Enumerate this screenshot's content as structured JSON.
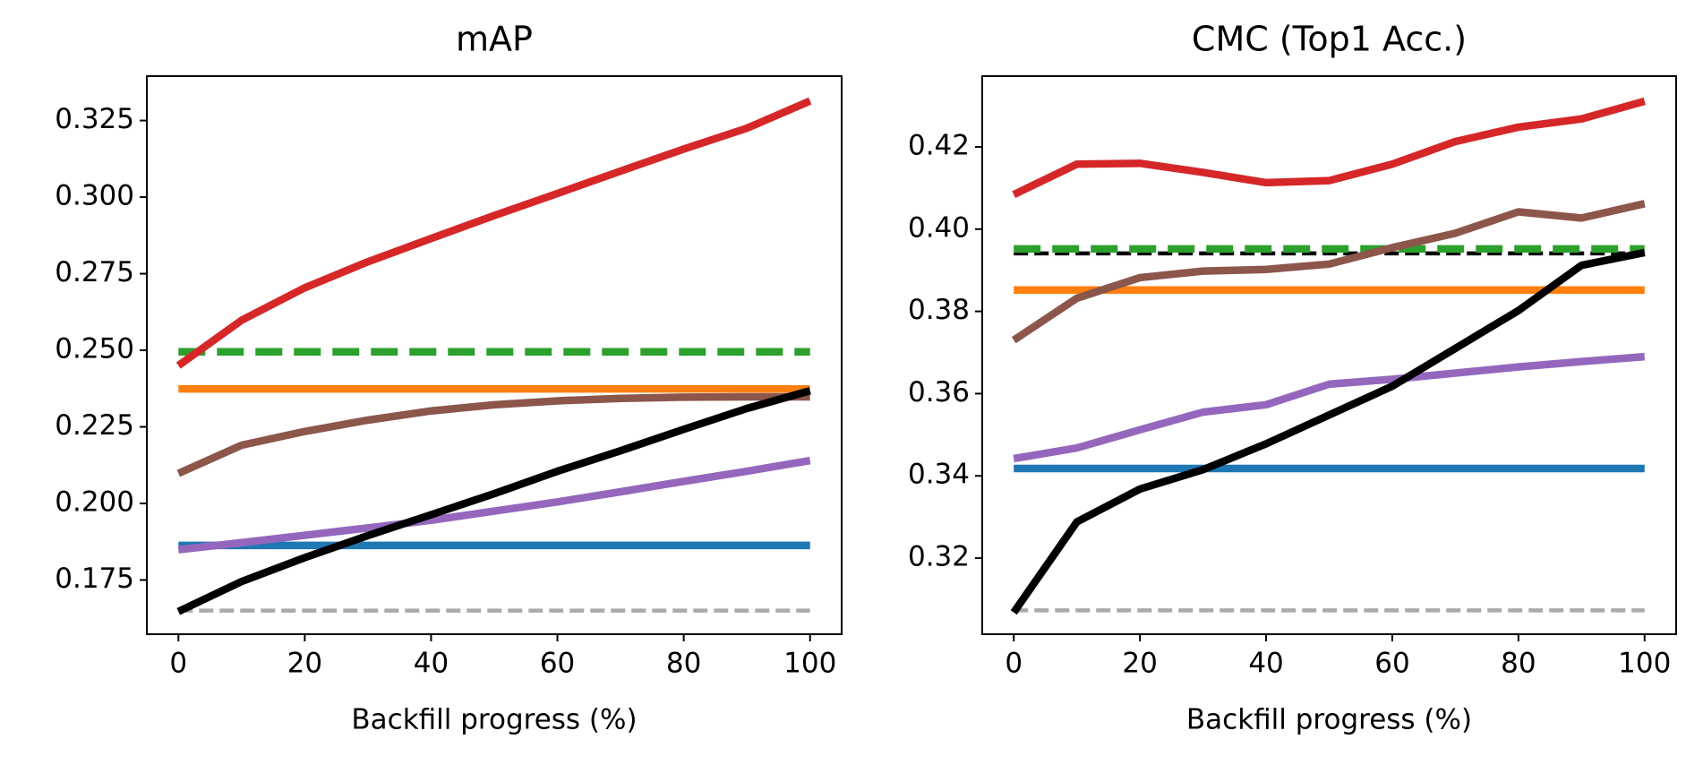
{
  "chart_data": [
    {
      "type": "line",
      "title": "mAP",
      "x_label": "Backfill progress (%)",
      "x": [
        0,
        10,
        20,
        30,
        40,
        50,
        60,
        70,
        80,
        90,
        100
      ],
      "xlim": [
        -5,
        105
      ],
      "xticks": [
        0,
        20,
        40,
        60,
        80,
        100
      ],
      "ylim": [
        0.1573,
        0.3395
      ],
      "yticks": [
        0.175,
        {
          "value": 0.2,
          "label": "0.200"
        },
        0.225,
        {
          "value": 0.25,
          "label": "0.250"
        },
        0.275,
        {
          "value": 0.3,
          "label": "0.300"
        },
        0.325
      ],
      "grid": false,
      "series": [
        {
          "color": "#1f77b4",
          "style": "solid",
          "values": [
            0.1863,
            0.1863,
            0.1863,
            0.1863,
            0.1863,
            0.1863,
            0.1863,
            0.1863,
            0.1863,
            0.1863,
            0.1863
          ]
        },
        {
          "color": "#ff7f0e",
          "style": "solid",
          "values": [
            0.2374,
            0.2374,
            0.2374,
            0.2374,
            0.2374,
            0.2374,
            0.2374,
            0.2374,
            0.2374,
            0.2374,
            0.2374
          ]
        },
        {
          "color": "#2ca02c",
          "style": "thick-dashed",
          "values": [
            0.2495,
            0.2495,
            0.2495,
            0.2495,
            0.2495,
            0.2495,
            0.2495,
            0.2495,
            0.2495,
            0.2495,
            0.2495
          ]
        },
        {
          "color": "#d62728",
          "style": "solid",
          "values": [
            0.245,
            0.2598,
            0.2704,
            0.2789,
            0.2865,
            0.294,
            0.3012,
            0.3085,
            0.3157,
            0.3225,
            0.3314
          ]
        },
        {
          "color": "#9467bd",
          "style": "solid",
          "values": [
            0.1849,
            0.1872,
            0.1896,
            0.192,
            0.1945,
            0.1975,
            0.2005,
            0.2038,
            0.2072,
            0.2105,
            0.214
          ]
        },
        {
          "color": "#8c564b",
          "style": "solid",
          "values": [
            0.2098,
            0.219,
            0.2235,
            0.2272,
            0.2302,
            0.2322,
            0.2335,
            0.2343,
            0.2347,
            0.2348,
            0.2348
          ]
        },
        {
          "color": "#aaaaaa",
          "style": "thin-dashed",
          "values": [
            0.165,
            0.165,
            0.165,
            0.165,
            0.165,
            0.165,
            0.165,
            0.165,
            0.165,
            0.165,
            0.165
          ]
        },
        {
          "color": "#000000",
          "style": "solid",
          "values": [
            0.1647,
            0.1745,
            0.1823,
            0.1895,
            0.1963,
            0.2032,
            0.2105,
            0.2172,
            0.2242,
            0.231,
            0.2368
          ]
        }
      ]
    },
    {
      "type": "line",
      "title": "CMC (Top1 Acc.)",
      "x_label": "Backfill progress (%)",
      "x": [
        0,
        10,
        20,
        30,
        40,
        50,
        60,
        70,
        80,
        90,
        100
      ],
      "xlim": [
        -5,
        105
      ],
      "xticks": [
        0,
        20,
        40,
        60,
        80,
        100
      ],
      "ylim": [
        0.3015,
        0.4372
      ],
      "yticks": [
        0.32,
        0.34,
        0.36,
        0.38,
        {
          "value": 0.4,
          "label": "0.40"
        },
        0.42
      ],
      "grid": false,
      "series": [
        {
          "color": "#1f77b4",
          "style": "solid",
          "values": [
            0.3418,
            0.3418,
            0.3418,
            0.3418,
            0.3418,
            0.3418,
            0.3418,
            0.3418,
            0.3418,
            0.3418,
            0.3418
          ]
        },
        {
          "color": "#ff7f0e",
          "style": "solid",
          "values": [
            0.3852,
            0.3852,
            0.3852,
            0.3852,
            0.3852,
            0.3852,
            0.3852,
            0.3852,
            0.3852,
            0.3852,
            0.3852
          ]
        },
        {
          "color": "#000000",
          "style": "thin-dashed",
          "values": [
            0.3941,
            0.3941,
            0.3941,
            0.3941,
            0.3941,
            0.3941,
            0.3941,
            0.3941,
            0.3941,
            0.3941,
            0.3941
          ]
        },
        {
          "color": "#2ca02c",
          "style": "thick-dashed",
          "values": [
            0.3952,
            0.3952,
            0.3952,
            0.3952,
            0.3952,
            0.3952,
            0.3952,
            0.3952,
            0.3952,
            0.3952,
            0.3952
          ]
        },
        {
          "color": "#d62728",
          "style": "solid",
          "values": [
            0.4084,
            0.4158,
            0.416,
            0.4138,
            0.4113,
            0.4118,
            0.4158,
            0.4213,
            0.4248,
            0.4268,
            0.4311
          ]
        },
        {
          "color": "#9467bd",
          "style": "solid",
          "values": [
            0.3442,
            0.3468,
            0.3512,
            0.3555,
            0.3573,
            0.3623,
            0.3635,
            0.365,
            0.3665,
            0.3678,
            0.369
          ]
        },
        {
          "color": "#8c564b",
          "style": "solid",
          "values": [
            0.373,
            0.3832,
            0.3882,
            0.3898,
            0.3902,
            0.3915,
            0.3955,
            0.399,
            0.4042,
            0.4027,
            0.4062
          ]
        },
        {
          "color": "#aaaaaa",
          "style": "thin-dashed",
          "values": [
            0.3073,
            0.3073,
            0.3073,
            0.3073,
            0.3073,
            0.3073,
            0.3073,
            0.3073,
            0.3073,
            0.3073,
            0.3073
          ]
        },
        {
          "color": "#000000",
          "style": "solid",
          "values": [
            0.3068,
            0.3288,
            0.3368,
            0.3415,
            0.3478,
            0.3548,
            0.3618,
            0.371,
            0.3802,
            0.3912,
            0.3943
          ]
        }
      ]
    }
  ]
}
